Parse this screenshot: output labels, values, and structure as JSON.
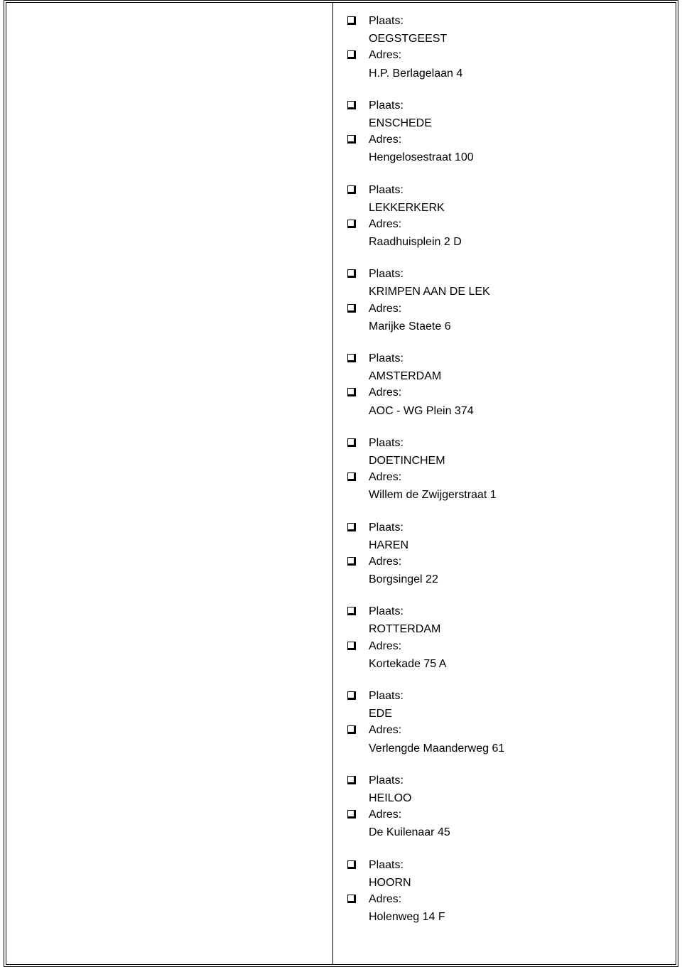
{
  "labels": {
    "plaats": "Plaats:",
    "adres": "Adres:"
  },
  "entries": [
    {
      "plaats": "OEGSTGEEST",
      "adres": "H.P. Berlagelaan 4"
    },
    {
      "plaats": "ENSCHEDE",
      "adres": "Hengelosestraat 100"
    },
    {
      "plaats": "LEKKERKERK",
      "adres": "Raadhuisplein 2 D"
    },
    {
      "plaats": "KRIMPEN AAN DE LEK",
      "adres": "Marijke Staete 6"
    },
    {
      "plaats": "AMSTERDAM",
      "adres": "AOC - WG Plein 374"
    },
    {
      "plaats": "DOETINCHEM",
      "adres": "Willem de Zwijgerstraat 1"
    },
    {
      "plaats": "HAREN",
      "adres": "Borgsingel 22"
    },
    {
      "plaats": "ROTTERDAM",
      "adres": "Kortekade 75 A"
    },
    {
      "plaats": "EDE",
      "adres": "Verlengde Maanderweg 61"
    },
    {
      "plaats": "HEILOO",
      "adres": "De Kuilenaar 45"
    },
    {
      "plaats": "HOORN",
      "adres": "Holenweg 14 F"
    }
  ],
  "style": {
    "bullet_border_color": "#000000",
    "bullet_shadow_color": "#000000",
    "text_color": "#000000",
    "background": "#ffffff",
    "font_size_pt": 12
  }
}
